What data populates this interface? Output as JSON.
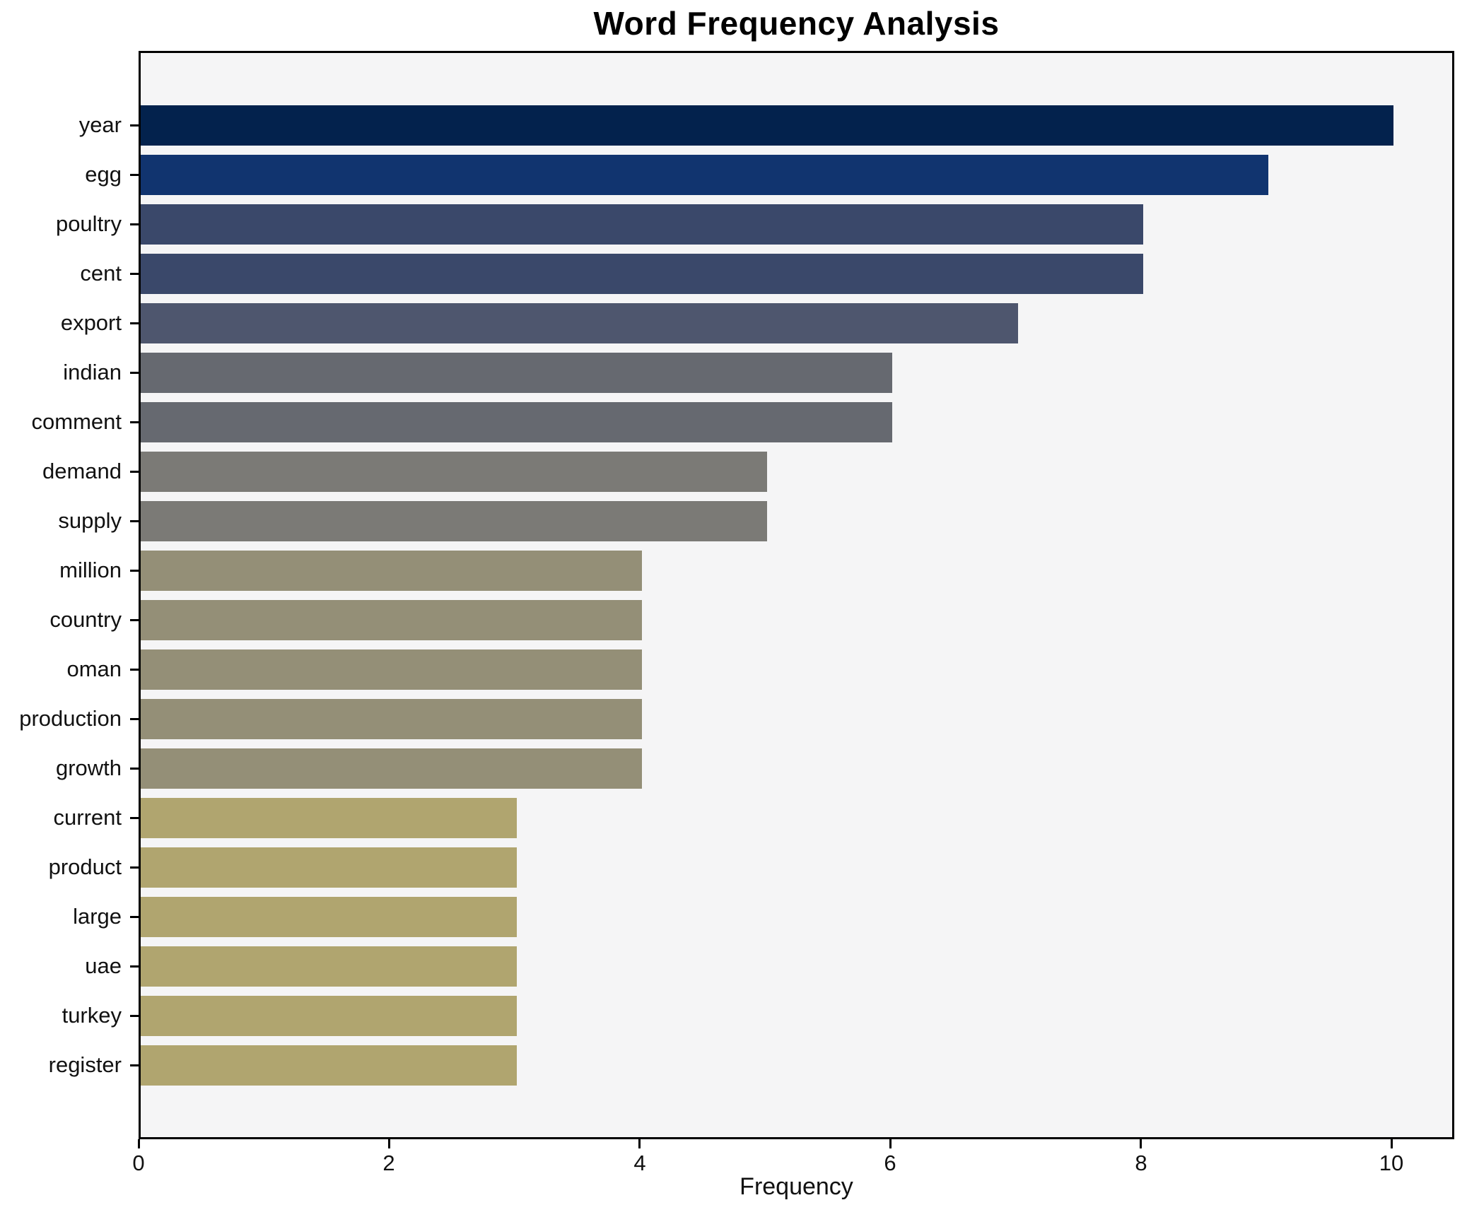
{
  "title": "Word Frequency Analysis",
  "chart_data": {
    "type": "bar",
    "orientation": "horizontal",
    "title": "Word Frequency Analysis",
    "xlabel": "Frequency",
    "ylabel": "",
    "categories": [
      "year",
      "egg",
      "poultry",
      "cent",
      "export",
      "indian",
      "comment",
      "demand",
      "supply",
      "million",
      "country",
      "oman",
      "production",
      "growth",
      "current",
      "product",
      "large",
      "uae",
      "turkey",
      "register"
    ],
    "values": [
      10,
      9,
      8,
      8,
      7,
      6,
      6,
      5,
      5,
      4,
      4,
      4,
      4,
      4,
      3,
      3,
      3,
      3,
      3,
      3
    ],
    "bar_colors": [
      "#03224d",
      "#11346f",
      "#3a486a",
      "#3a486a",
      "#4e566e",
      "#666970",
      "#666970",
      "#7b7a76",
      "#7b7a76",
      "#948f77",
      "#948f77",
      "#948f77",
      "#948f77",
      "#948f77",
      "#b0a56f",
      "#b0a56f",
      "#b0a56f",
      "#b0a56f",
      "#b0a56f",
      "#b0a56f"
    ],
    "xlim": [
      0,
      10.5
    ],
    "xticks": [
      0,
      2,
      4,
      6,
      8,
      10
    ],
    "grid": false,
    "legend_position": "none",
    "plot_background": "#f5f5f6",
    "figure_background": "#ffffff",
    "spine_color": "#000000"
  }
}
